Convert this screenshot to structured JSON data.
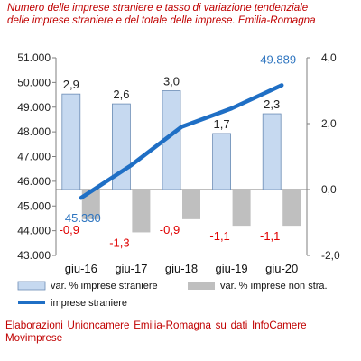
{
  "title_line1": "Numero delle imprese straniere e tasso di variazione tendenziale",
  "title_line2": "delle imprese straniere e del totale delle imprese. Emilia-Romagna",
  "source": "Elaborazioni Unioncamere Emilia-Romagna su dati InfoCamere Movimprese",
  "chart_data": {
    "type": "bar",
    "categories": [
      "giu-16",
      "giu-17",
      "giu-18",
      "giu-19",
      "giu-20"
    ],
    "y_left": {
      "ticks": [
        "43.000",
        "44.000",
        "45.000",
        "46.000",
        "47.000",
        "48.000",
        "49.000",
        "50.000",
        "51.000"
      ],
      "ylim": [
        43000,
        51000
      ]
    },
    "y_right": {
      "ticks": [
        "-2,0",
        "0,0",
        "2,0",
        "4,0"
      ],
      "ylim": [
        -2,
        4
      ]
    },
    "series": [
      {
        "name": "var. % imprese straniere",
        "type": "bar",
        "axis": "right",
        "values": [
          2.9,
          2.6,
          3.0,
          1.7,
          2.3
        ],
        "labels": [
          "2,9",
          "2,6",
          "3,0",
          "1,7",
          "2,3"
        ],
        "color": "#c6d9f0"
      },
      {
        "name": "var. % imprese non stra.",
        "type": "bar",
        "axis": "right",
        "values": [
          -0.9,
          -1.3,
          -0.9,
          -1.1,
          -1.1
        ],
        "labels": [
          "-0,9",
          "-1,3",
          "-0,9",
          "-1,1",
          "-1,1"
        ],
        "color": "#bfbfbf"
      },
      {
        "name": "imprese straniere",
        "type": "line",
        "axis": "left",
        "values": [
          45330,
          46650,
          48200,
          48950,
          49889
        ],
        "end_labels": [
          "45.330",
          "49.889"
        ],
        "color": "#1f6fc5"
      }
    ],
    "legend_position": "bottom",
    "grid": false
  }
}
